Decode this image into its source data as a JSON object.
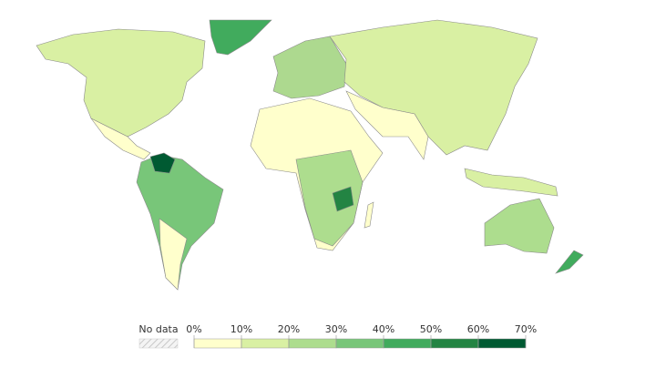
{
  "legend": {
    "no_data": "No data",
    "ticks": [
      {
        "value": 0,
        "label": "0%"
      },
      {
        "value": 10,
        "label": "10%"
      },
      {
        "value": 20,
        "label": "20%"
      },
      {
        "value": 30,
        "label": "30%"
      },
      {
        "value": 40,
        "label": "40%"
      },
      {
        "value": 50,
        "label": "50%"
      },
      {
        "value": 60,
        "label": "60%"
      },
      {
        "value": 70,
        "label": "70%"
      }
    ],
    "colors": [
      "#ffffcc",
      "#d9f0a3",
      "#addd8e",
      "#78c679",
      "#41ab5d",
      "#238443",
      "#005a32"
    ]
  }
}
